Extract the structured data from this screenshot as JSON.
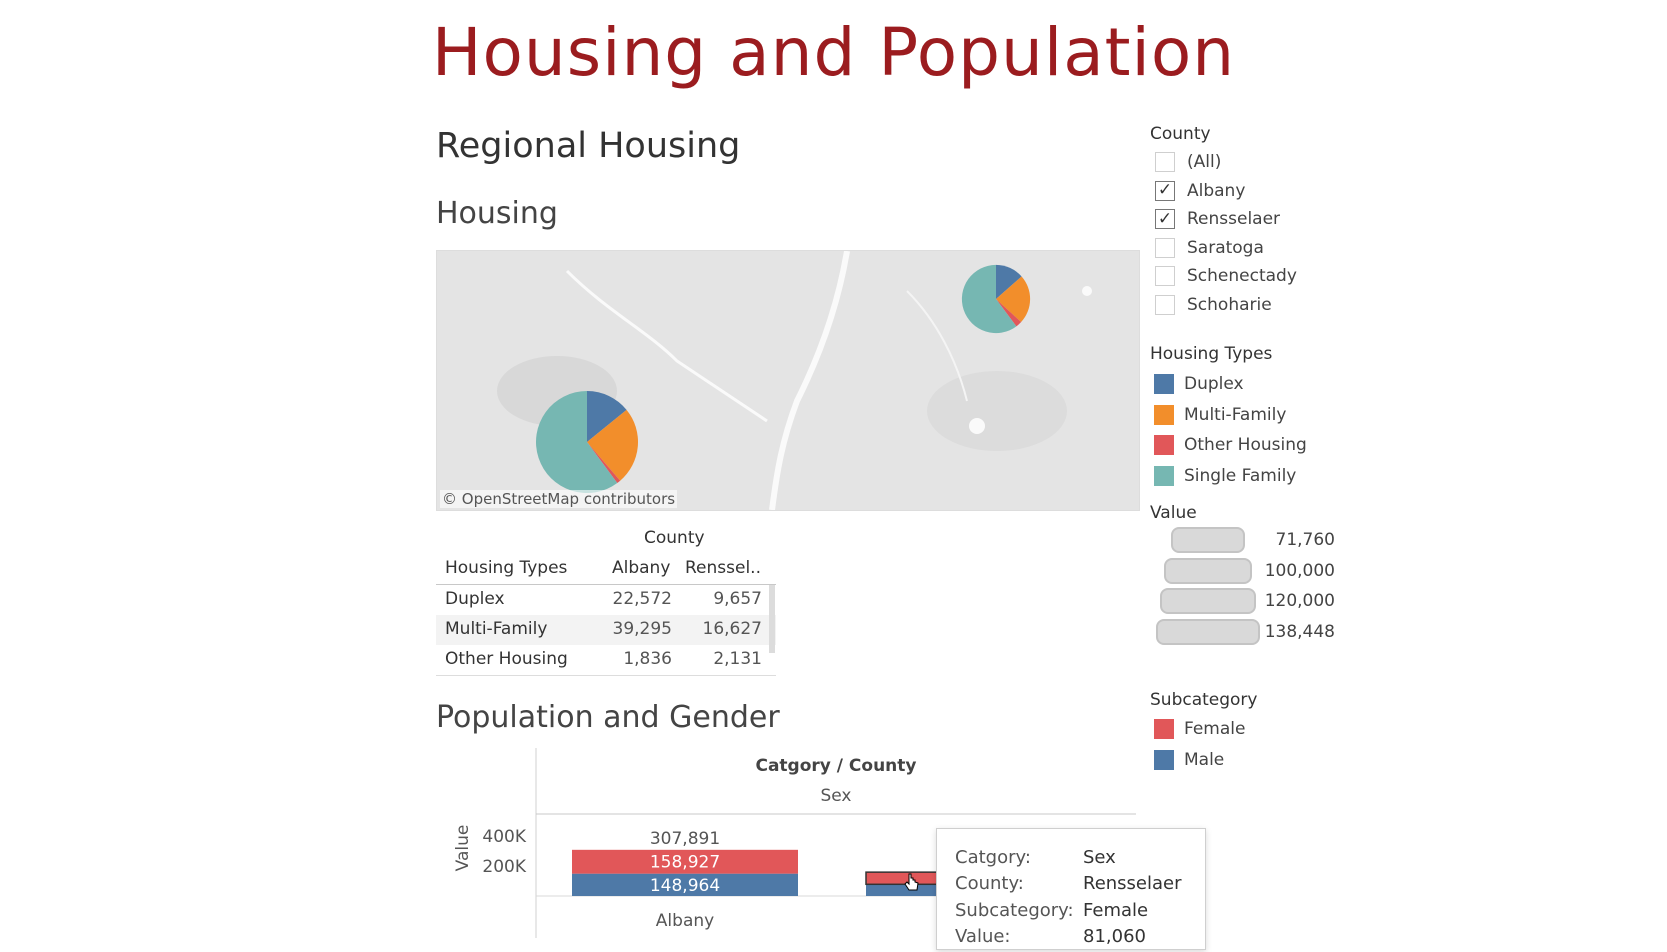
{
  "title": "Housing and Population",
  "sections": {
    "regional": "Regional Housing",
    "housing": "Housing",
    "population": "Population and Gender"
  },
  "map": {
    "attribution": "© OpenStreetMap contributors",
    "pies": [
      {
        "county": "Albany",
        "slices": [
          22572,
          39295,
          1836,
          96000
        ]
      },
      {
        "county": "Rensselaer",
        "slices": [
          9657,
          16627,
          2131,
          43000
        ]
      }
    ]
  },
  "table": {
    "super_header": "County",
    "row_header": "Housing Types",
    "columns": [
      "Albany",
      "Renssel.."
    ],
    "rows": [
      {
        "label": "Duplex",
        "values": [
          "22,572",
          "9,657"
        ]
      },
      {
        "label": "Multi-Family",
        "values": [
          "39,295",
          "16,627"
        ]
      },
      {
        "label": "Other Housing",
        "values": [
          "1,836",
          "2,131"
        ]
      }
    ]
  },
  "legends": {
    "county": {
      "title": "County",
      "items": [
        {
          "label": "(All)",
          "checked": false
        },
        {
          "label": "Albany",
          "checked": true
        },
        {
          "label": "Rensselaer",
          "checked": true
        },
        {
          "label": "Saratoga",
          "checked": false
        },
        {
          "label": "Schenectady",
          "checked": false
        },
        {
          "label": "Schoharie",
          "checked": false
        }
      ]
    },
    "housing_types": {
      "title": "Housing Types",
      "items": [
        {
          "label": "Duplex",
          "color": "#4e79a7"
        },
        {
          "label": "Multi-Family",
          "color": "#f28e2b"
        },
        {
          "label": "Other Housing",
          "color": "#e15759"
        },
        {
          "label": "Single Family",
          "color": "#76b7b2"
        }
      ]
    },
    "value": {
      "title": "Value",
      "items": [
        "71,760",
        "100,000",
        "120,000",
        "138,448"
      ]
    },
    "subcategory": {
      "title": "Subcategory",
      "items": [
        {
          "label": "Female",
          "color": "#e15759"
        },
        {
          "label": "Male",
          "color": "#4e79a7"
        }
      ]
    }
  },
  "chart_data": {
    "type": "bar",
    "header": "Catgory / County",
    "subheader": "Sex",
    "ylabel": "Value",
    "ticks": [
      "400K",
      "200K"
    ],
    "categories": [
      "Albany",
      "Rensselaer"
    ],
    "totals": [
      "307,891",
      ""
    ],
    "series": [
      {
        "name": "Male",
        "values": [
          148964,
          78000
        ],
        "labels": [
          "148,964",
          ""
        ]
      },
      {
        "name": "Female",
        "values": [
          158927,
          81060
        ],
        "labels": [
          "158,927",
          ""
        ]
      }
    ],
    "x_labels": [
      "Albany"
    ]
  },
  "tooltip": {
    "rows": [
      {
        "key": "Catgory:",
        "value": "Sex"
      },
      {
        "key": "County:",
        "value": "Rensselaer"
      },
      {
        "key": "Subcategory:",
        "value": "Female"
      },
      {
        "key": "Value:",
        "value": "81,060"
      }
    ]
  }
}
